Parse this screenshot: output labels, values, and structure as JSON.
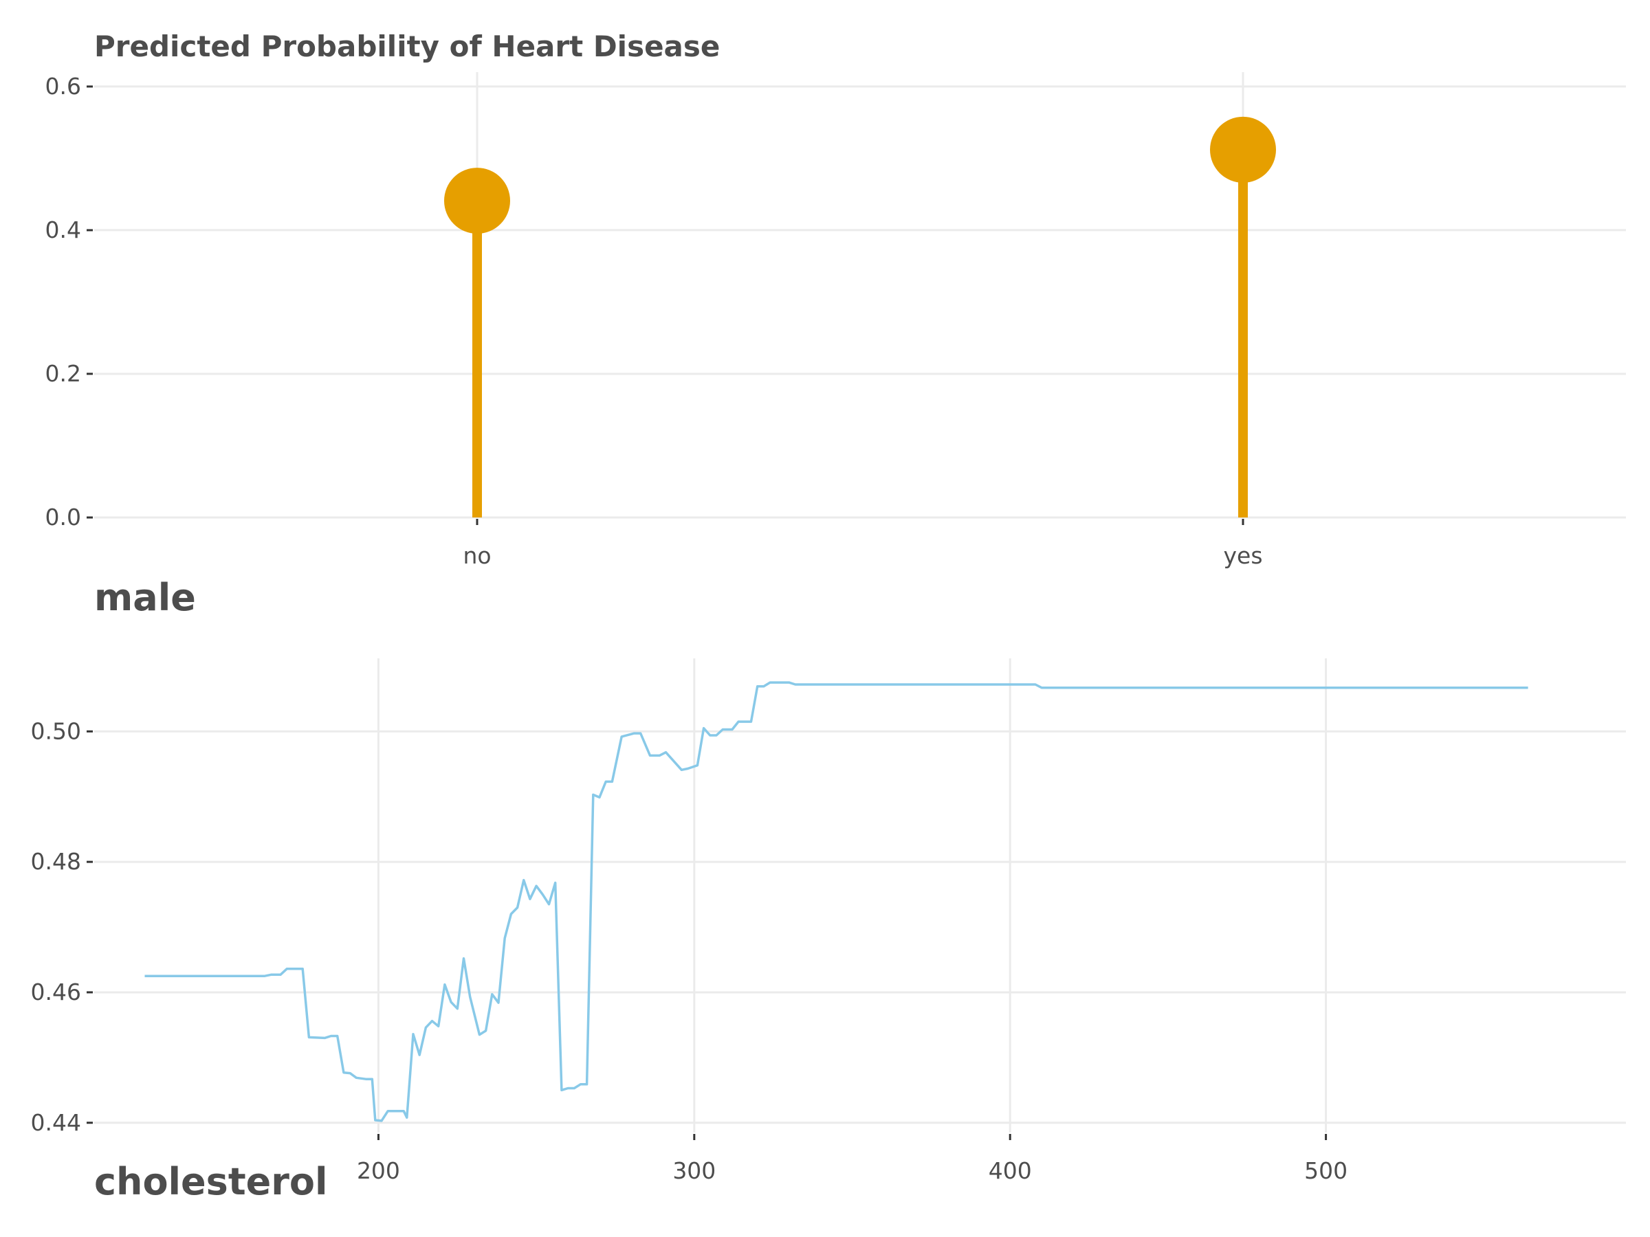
{
  "chart_data": [
    {
      "type": "lollipop",
      "title": "Predicted Probability of Heart Disease",
      "xlabel": "male",
      "ylabel": "",
      "categories": [
        "no",
        "yes"
      ],
      "values": [
        0.441,
        0.512
      ],
      "ylim": [
        0,
        0.62
      ],
      "yticks": [
        0.0,
        0.2,
        0.4,
        0.6
      ],
      "ytick_labels": [
        "0.0",
        "0.2",
        "0.4",
        "0.6"
      ],
      "color": "#E69F00",
      "grid": true
    },
    {
      "type": "line",
      "title": "",
      "xlabel": "cholesterol",
      "ylabel": "",
      "x": [
        126,
        164,
        166,
        169,
        171,
        176,
        178,
        183,
        185,
        187,
        189,
        191,
        193,
        196,
        198,
        199,
        201,
        203,
        205,
        208,
        209,
        211,
        213,
        215,
        217,
        219,
        221,
        223,
        225,
        227,
        229,
        232,
        234,
        236,
        238,
        240,
        242,
        244,
        246,
        248,
        250,
        252,
        254,
        256,
        258,
        260,
        262,
        264,
        266,
        268,
        270,
        272,
        274,
        277,
        281,
        283,
        286,
        289,
        291,
        296,
        298,
        301,
        303,
        305,
        307,
        309,
        312,
        314,
        318,
        320,
        322,
        324,
        326,
        330,
        332,
        338,
        340,
        342,
        408,
        410,
        564
      ],
      "values": [
        0.4625,
        0.4625,
        0.4627,
        0.4627,
        0.4636,
        0.4636,
        0.4531,
        0.453,
        0.4533,
        0.4533,
        0.4477,
        0.4476,
        0.4469,
        0.4467,
        0.4467,
        0.4404,
        0.4403,
        0.4418,
        0.4418,
        0.4418,
        0.4408,
        0.4536,
        0.4504,
        0.4546,
        0.4556,
        0.4548,
        0.4612,
        0.4585,
        0.4575,
        0.4652,
        0.4593,
        0.4535,
        0.4541,
        0.4597,
        0.4584,
        0.4683,
        0.472,
        0.473,
        0.4772,
        0.4743,
        0.4763,
        0.475,
        0.4735,
        0.4768,
        0.445,
        0.4453,
        0.4453,
        0.4459,
        0.4459,
        0.4903,
        0.4899,
        0.4923,
        0.4923,
        0.4992,
        0.4997,
        0.4997,
        0.4963,
        0.4963,
        0.4968,
        0.4941,
        0.4943,
        0.4948,
        0.5005,
        0.4994,
        0.4994,
        0.5003,
        0.5003,
        0.5015,
        0.5015,
        0.5069,
        0.5069,
        0.5075,
        0.5075,
        0.5075,
        0.5072,
        0.5072,
        0.5072,
        0.5072,
        0.5072,
        0.5067,
        0.5067
      ],
      "xlim": [
        110,
        595
      ],
      "ylim": [
        0.4385,
        0.5112
      ],
      "xticks": [
        200,
        300,
        400,
        500
      ],
      "xtick_labels": [
        "200",
        "300",
        "400",
        "500"
      ],
      "yticks": [
        0.44,
        0.46,
        0.48,
        0.5
      ],
      "ytick_labels": [
        "0.44",
        "0.46",
        "0.48",
        "0.50"
      ],
      "color": "#88C9E8",
      "grid": true
    }
  ]
}
